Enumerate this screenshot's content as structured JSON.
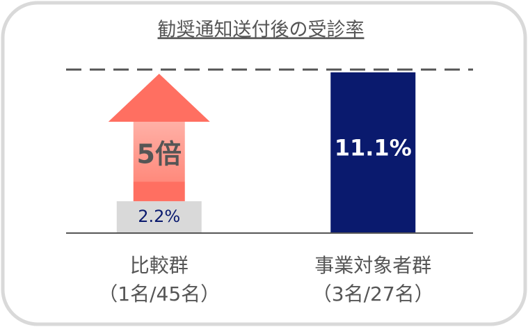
{
  "chart_data": {
    "type": "bar",
    "title": "勧奨通知送付後の受診率",
    "categories": [
      "比較群",
      "事業対象者群"
    ],
    "category_notes": [
      "（1名/45名）",
      "（3名/27名）"
    ],
    "values": [
      2.2,
      11.1
    ],
    "value_labels": [
      "2.2%",
      "11.1%"
    ],
    "colors": [
      "#d9d9d9",
      "#0a1a6e"
    ],
    "value_label_colors": [
      "#0a1a6e",
      "#ffffff"
    ],
    "ylim": [
      0,
      11.1
    ],
    "annotation": "5倍"
  }
}
